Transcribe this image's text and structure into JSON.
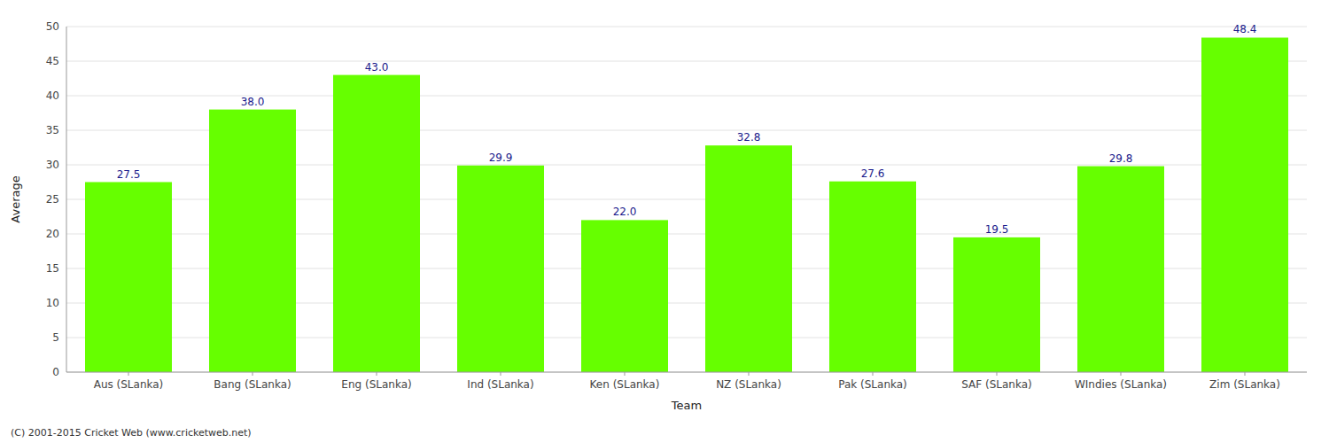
{
  "chart_data": {
    "type": "bar",
    "categories": [
      "Aus (SLanka)",
      "Bang (SLanka)",
      "Eng (SLanka)",
      "Ind (SLanka)",
      "Ken (SLanka)",
      "NZ (SLanka)",
      "Pak (SLanka)",
      "SAF (SLanka)",
      "WIndies (SLanka)",
      "Zim (SLanka)"
    ],
    "values": [
      27.5,
      38.0,
      43.0,
      29.9,
      22.0,
      32.8,
      27.6,
      19.5,
      29.8,
      48.4
    ],
    "value_labels": [
      "27.5",
      "38.0",
      "43.0",
      "29.9",
      "22.0",
      "32.8",
      "27.6",
      "19.5",
      "29.8",
      "48.4"
    ],
    "data_labels": true,
    "color": "#66ff00",
    "xlabel": "Team",
    "ylabel": "Average",
    "ylim": [
      0,
      50
    ],
    "yticks": [
      0,
      5,
      10,
      15,
      20,
      25,
      30,
      35,
      40,
      45,
      50
    ],
    "grid": true,
    "footer": "(C) 2001-2015 Cricket Web (www.cricketweb.net)"
  }
}
